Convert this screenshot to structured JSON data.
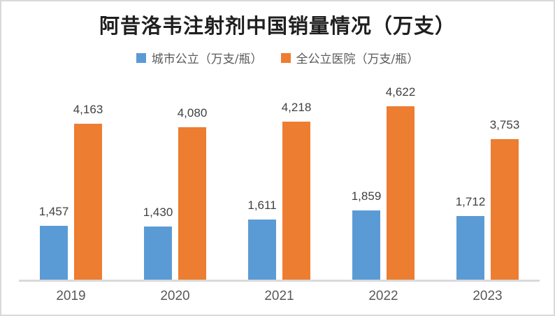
{
  "window": {
    "background": "#ffffff",
    "border_color": "#d9d9d9"
  },
  "chart_data": {
    "type": "bar",
    "title": "阿昔洛韦注射剂中国销量情况（万支）",
    "categories": [
      "2019",
      "2020",
      "2021",
      "2022",
      "2023"
    ],
    "series": [
      {
        "name": "城市公立（万支/瓶）",
        "color": "#5B9BD5",
        "values": [
          1457,
          1430,
          1611,
          1859,
          1712
        ],
        "value_labels": [
          "1,457",
          "1,430",
          "1,611",
          "1,859",
          "1,712"
        ]
      },
      {
        "name": "全公立医院（万支/瓶）",
        "color": "#ED7D31",
        "values": [
          4163,
          4080,
          4218,
          4622,
          3753
        ],
        "value_labels": [
          "4,163",
          "4,080",
          "4,218",
          "4,622",
          "3,753"
        ]
      }
    ],
    "xlabel": "",
    "ylabel": "",
    "ylim": [
      0,
      5000
    ],
    "grid": false,
    "legend_position": "top",
    "data_labels": true,
    "axis_line_color": "#d9d9d9",
    "data_label_color": "#404040",
    "tick_label_color": "#595959"
  }
}
